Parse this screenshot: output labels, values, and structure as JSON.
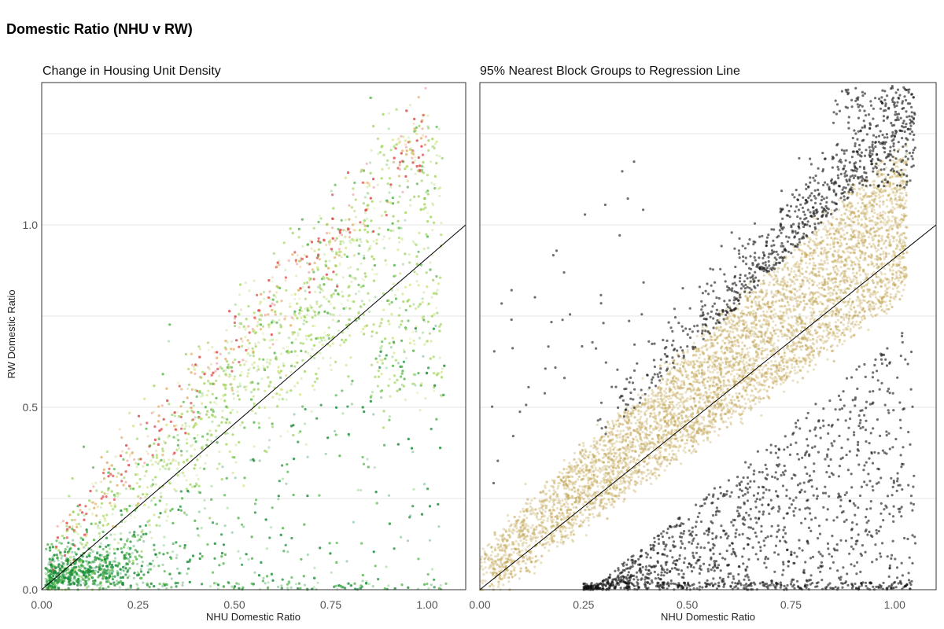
{
  "figure": {
    "title": "Domestic Ratio (NHU v RW)"
  },
  "chart_data": [
    {
      "type": "scatter",
      "title": "Change in Housing Unit Density",
      "xlabel": "NHU Domestic Ratio",
      "ylabel": "RW Domestic Ratio",
      "xlim": [
        0,
        1.1
      ],
      "ylim": [
        0,
        1.39
      ],
      "x_ticks": [
        "0.00",
        "0.25",
        "0.50",
        "0.75",
        "1.00"
      ],
      "y_ticks": [
        "0.0",
        "0.5",
        "1.0"
      ],
      "grid": true,
      "reference_line": {
        "x": [
          0,
          1.1
        ],
        "y": [
          0,
          1.0
        ]
      },
      "colors": [
        "#1a8f3a",
        "#58b84f",
        "#a9d66a",
        "#d9e58e",
        "#e6b26a",
        "#e04a4a"
      ],
      "point_opacity": 0.35,
      "points_estimated": 9000,
      "regions": [
        {
          "label": "dense cluster near origin",
          "x": [
            0.0,
            0.35
          ],
          "y": [
            0.0,
            0.18
          ],
          "color": "#1a8f3a"
        },
        {
          "label": "above-trend band",
          "x": [
            0.05,
            1.0
          ],
          "y": [
            0.1,
            1.1
          ],
          "color": "#e04a4a"
        },
        {
          "label": "main band",
          "x": [
            0.1,
            1.05
          ],
          "y": [
            0.1,
            1.35
          ],
          "color": "#a9d66a"
        },
        {
          "label": "below-trend scatter",
          "x": [
            0.2,
            1.05
          ],
          "y": [
            0.0,
            0.5
          ],
          "color": "#58b84f"
        }
      ]
    },
    {
      "type": "scatter",
      "title": "95% Nearest Block Groups to Regression Line",
      "xlabel": "NHU Domestic Ratio",
      "ylabel": "",
      "xlim": [
        0,
        1.1
      ],
      "ylim": [
        0,
        1.39
      ],
      "x_ticks": [
        "0.00",
        "0.25",
        "0.50",
        "0.75",
        "1.00"
      ],
      "y_ticks": [],
      "grid": true,
      "reference_line": {
        "x": [
          0,
          1.1
        ],
        "y": [
          0,
          1.0
        ]
      },
      "colors": [
        "#c2a656",
        "#111111"
      ],
      "series": [
        {
          "name": "",
          "color": "#c2a656",
          "note_band_upper": [
            [
              0.0,
              0.08
            ],
            [
              1.0,
              1.15
            ]
          ],
          "note_band_lower": [
            [
              0.25,
              0.0
            ],
            [
              1.0,
              0.68
            ]
          ]
        },
        {
          "name": "",
          "color": "#111111"
        }
      ]
    }
  ]
}
